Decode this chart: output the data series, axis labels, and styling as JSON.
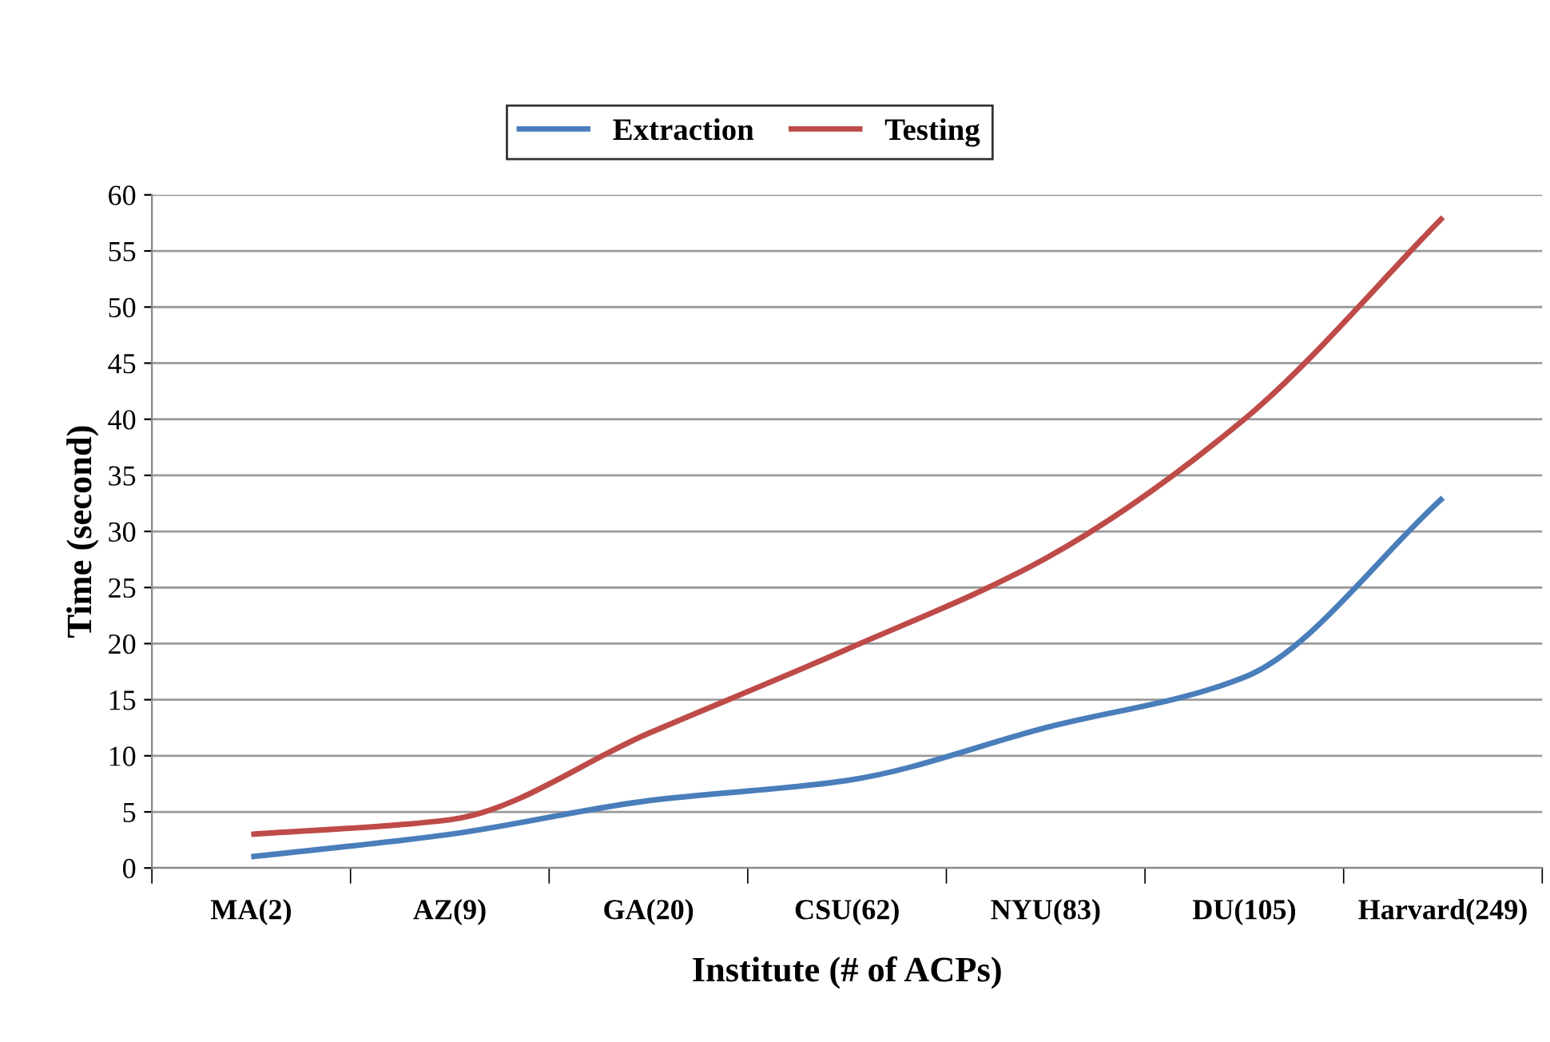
{
  "chart_data": {
    "type": "line",
    "xlabel": "Institute (# of ACPs)",
    "ylabel": "Time (second)",
    "categories": [
      "MA(2)",
      "AZ(9)",
      "GA(20)",
      "CSU(62)",
      "NYU(83)",
      "DU(105)",
      "Harvard(249)"
    ],
    "series": [
      {
        "name": "Extraction",
        "color": "#4a7ebb",
        "values": [
          1,
          3,
          6,
          7.8,
          12.5,
          17,
          33
        ]
      },
      {
        "name": "Testing",
        "color": "#be4b48",
        "values": [
          3,
          4.3,
          12,
          19.5,
          27.6,
          40,
          58
        ]
      }
    ],
    "ylim": [
      0,
      60
    ],
    "yticks": [
      0,
      5,
      10,
      15,
      20,
      25,
      30,
      35,
      40,
      45,
      50,
      55,
      60
    ],
    "grid": "y",
    "legend": "top",
    "marker": "none",
    "line_style": "solid"
  }
}
